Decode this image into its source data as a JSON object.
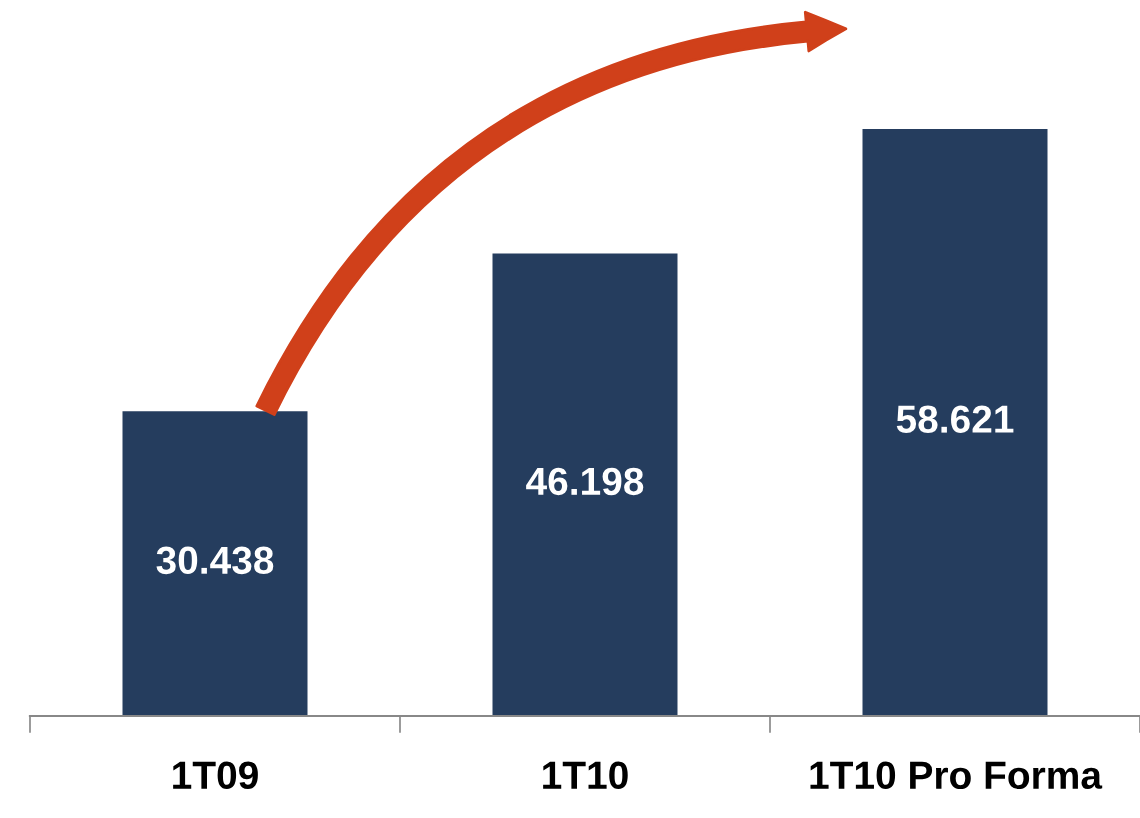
{
  "chart_data": {
    "type": "bar",
    "categories": [
      "1T09",
      "1T10",
      "1T10 Pro Forma"
    ],
    "values": [
      30.438,
      46.198,
      58.621
    ],
    "value_labels": [
      "30.438",
      "46.198",
      "58.621"
    ],
    "color": "#253d5e",
    "grid": false,
    "legend": false
  }
}
